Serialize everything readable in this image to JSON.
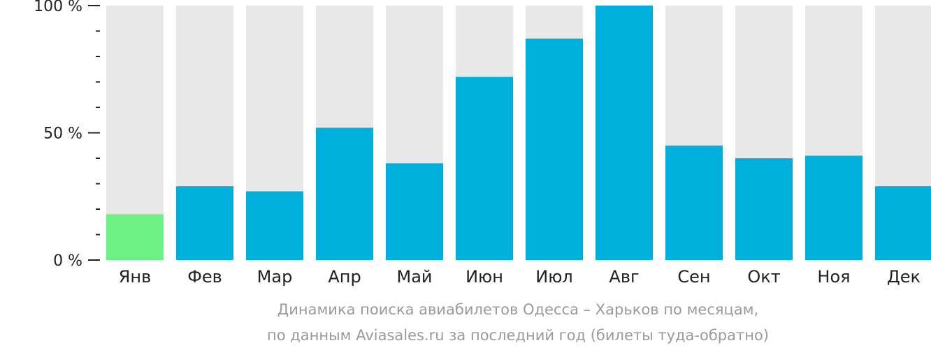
{
  "chart_data": {
    "type": "bar",
    "categories": [
      "Янв",
      "Фев",
      "Мар",
      "Апр",
      "Май",
      "Июн",
      "Июл",
      "Авг",
      "Сен",
      "Окт",
      "Ноя",
      "Дек"
    ],
    "values": [
      18,
      29,
      27,
      52,
      38,
      72,
      87,
      100,
      45,
      40,
      41,
      29
    ],
    "ylim": [
      0,
      100
    ],
    "yticks": [
      {
        "value": 0,
        "label": "0 %"
      },
      {
        "value": 50,
        "label": "50 %"
      },
      {
        "value": 100,
        "label": "100 %"
      }
    ],
    "minor_tick_step": 10,
    "colors": {
      "bar": "#00b0dc",
      "highlight": "#6df084",
      "background_bar": "#e8e8e8",
      "axis": "#222222"
    },
    "highlight_index": 0,
    "caption_line1": "Динамика поиска авиабилетов Одесса – Харьков по месяцам,",
    "caption_line2": "по данным Aviasales.ru за последний год (билеты туда-обратно)"
  }
}
